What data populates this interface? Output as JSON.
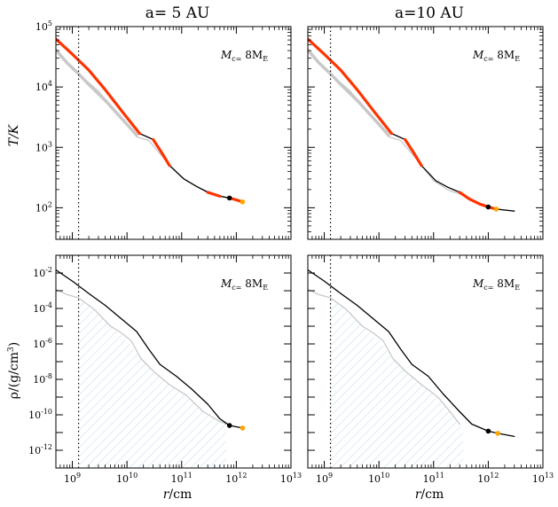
{
  "chart_data": {
    "type": "line",
    "x_axis": {
      "label": "r/cm",
      "scale": "log",
      "range": [
        500000000.0,
        10000000000000.0
      ],
      "ticks": [
        {
          "value": 1000000000.0,
          "label": "10^9"
        },
        {
          "value": 10000000000.0,
          "label": "10^10"
        },
        {
          "value": 100000000000.0,
          "label": "10^11"
        },
        {
          "value": 1000000000000.0,
          "label": "10^12"
        },
        {
          "value": 10000000000000.0,
          "label": "10^13"
        }
      ]
    },
    "core_radius_marker": 1300000000.0,
    "columns": [
      {
        "title": "a= 5 AU"
      },
      {
        "title": "a=10 AU"
      }
    ],
    "panels": [
      {
        "id": "T-5AU",
        "row": 0,
        "col": 0,
        "annotation": "Mc= 8ME",
        "ylabel": "T/K",
        "yscale": "log",
        "ylim": [
          30,
          100000.0
        ],
        "yticks": [
          {
            "value": 100.0,
            "label": "10^2"
          },
          {
            "value": 1000.0,
            "label": "10^3"
          },
          {
            "value": 10000.0,
            "label": "10^4"
          },
          {
            "value": 100000.0,
            "label": "10^5"
          }
        ],
        "series": [
          {
            "style": "gray-thin",
            "x": [
              1300000000.0,
              3000000000.0,
              6000000000.0,
              15000000000.0,
              25000000000.0,
              50000000000.0,
              100000000000.0,
              200000000000.0,
              400000000000.0,
              700000000000.0
            ],
            "y": [
              16500,
              8500,
              4000,
              1500,
              1300,
              620,
              320,
              215,
              170,
              145
            ]
          },
          {
            "style": "gray-thick",
            "x": [
              500000000.0,
              800000000.0,
              1300000000.0,
              2000000000.0,
              4000000000.0,
              8000000000.0,
              15000000000.0
            ],
            "y": [
              41000,
              25000,
              16500,
              11000,
              6000,
              3000,
              1600
            ]
          },
          {
            "style": "black-thin",
            "x": [
              500000000.0,
              1000000000.0,
              2000000000.0,
              4000000000.0,
              8000000000.0,
              17000000000.0,
              30000000000.0,
              60000000000.0,
              110000000000.0,
              180000000000.0,
              300000000000.0,
              500000000000.0,
              750000000000.0,
              1300000000000.0
            ],
            "y": [
              62000,
              35000,
              19000,
              9000,
              4000,
              1700,
              1350,
              500,
              300,
              230,
              180,
              155,
              145,
              125
            ]
          },
          {
            "style": "red-thick",
            "x": [
              500000000.0,
              1000000000.0,
              2000000000.0,
              4000000000.0,
              8000000000.0,
              17000000000.0
            ],
            "y": [
              62000,
              35000,
              19000,
              9000,
              4000,
              1700
            ]
          },
          {
            "style": "red-thick",
            "x": [
              30000000000.0,
              42000000000.0,
              60000000000.0
            ],
            "y": [
              1350,
              850,
              500
            ]
          },
          {
            "style": "red-thick",
            "x": [
              300000000000.0,
              500000000000.0
            ],
            "y": [
              180,
              155
            ]
          },
          {
            "style": "red-thick",
            "x": [
              750000000000.0,
              1000000000000.0,
              1300000000000.0
            ],
            "y": [
              145,
              135,
              125
            ]
          }
        ],
        "markers": [
          {
            "x": 750000000000.0,
            "y": 145,
            "color": "#000000"
          },
          {
            "x": 1300000000000.0,
            "y": 125,
            "color": "#ffa500"
          }
        ]
      },
      {
        "id": "T-10AU",
        "row": 0,
        "col": 1,
        "annotation": "Mc= 8ME",
        "ylabel": "",
        "yscale": "log",
        "ylim": [
          30,
          100000.0
        ],
        "yticks": [
          {
            "value": 100.0,
            "label": ""
          },
          {
            "value": 1000.0,
            "label": ""
          },
          {
            "value": 10000.0,
            "label": ""
          },
          {
            "value": 100000.0,
            "label": ""
          }
        ],
        "series": [
          {
            "style": "gray-thin",
            "x": [
              1300000000.0,
              3000000000.0,
              6000000000.0,
              15000000000.0,
              25000000000.0,
              50000000000.0,
              100000000000.0,
              200000000000.0,
              300000000000.0
            ],
            "y": [
              16500,
              8500,
              4000,
              1500,
              1300,
              620,
              280,
              190,
              170
            ]
          },
          {
            "style": "gray-thick",
            "x": [
              500000000.0,
              800000000.0,
              1300000000.0,
              2000000000.0,
              4000000000.0,
              8000000000.0,
              15000000000.0
            ],
            "y": [
              41000,
              25000,
              16500,
              11000,
              6000,
              3000,
              1600
            ]
          },
          {
            "style": "black-thin",
            "x": [
              500000000.0,
              1000000000.0,
              2000000000.0,
              4000000000.0,
              8000000000.0,
              17000000000.0,
              30000000000.0,
              60000000000.0,
              110000000000.0,
              180000000000.0,
              300000000000.0,
              450000000000.0,
              700000000000.0,
              1000000000000.0,
              1400000000000.0,
              3000000000000.0
            ],
            "y": [
              62000,
              35000,
              19000,
              9000,
              4000,
              1700,
              1350,
              500,
              280,
              220,
              180,
              140,
              115,
              103,
              95,
              88
            ]
          },
          {
            "style": "red-thick",
            "x": [
              500000000.0,
              1000000000.0,
              2000000000.0,
              4000000000.0,
              8000000000.0,
              17000000000.0
            ],
            "y": [
              62000,
              35000,
              19000,
              9000,
              4000,
              1700
            ]
          },
          {
            "style": "red-thick",
            "x": [
              30000000000.0,
              42000000000.0,
              60000000000.0
            ],
            "y": [
              1350,
              850,
              500
            ]
          },
          {
            "style": "red-thick",
            "x": [
              300000000000.0,
              450000000000.0,
              700000000000.0,
              1000000000000.0,
              1400000000000.0
            ],
            "y": [
              180,
              140,
              115,
              103,
              95
            ]
          }
        ],
        "markers": [
          {
            "x": 1000000000000.0,
            "y": 103,
            "color": "#000000"
          },
          {
            "x": 1400000000000.0,
            "y": 95,
            "color": "#ffa500"
          }
        ]
      },
      {
        "id": "rho-5AU",
        "row": 1,
        "col": 0,
        "annotation": "Mc= 8ME",
        "ylabel": "ρ/(g/cm^3)",
        "yscale": "log",
        "ylim": [
          1e-13,
          0.1
        ],
        "yticks": [
          {
            "value": 1e-12,
            "label": "10^-12"
          },
          {
            "value": 1e-10,
            "label": "10^-10"
          },
          {
            "value": 1e-08,
            "label": "10^-8"
          },
          {
            "value": 1e-06,
            "label": "10^-6"
          },
          {
            "value": 0.0001,
            "label": "10^-4"
          },
          {
            "value": 0.01,
            "label": "10^-2"
          }
        ],
        "hatch": {
          "x": [
            1300000000.0,
            2500000000.0,
            5000000000.0,
            10000000000.0,
            18000000000.0,
            30000000000.0,
            60000000000.0,
            120000000000.0,
            250000000000.0,
            450000000000.0,
            650000000000.0
          ],
          "y": [
            0.0004,
            9e-05,
            1e-05,
            1.5e-06,
            1.5e-07,
            3e-08,
            5e-09,
            1.3e-09,
            1.5e-10,
            5e-11,
            3e-11
          ]
        },
        "series": [
          {
            "style": "gray-thin",
            "x": [
              500000000.0,
              800000000.0,
              1300000000.0,
              2500000000.0,
              5000000000.0,
              8000000000.0,
              12000000000.0,
              18000000000.0,
              30000000000.0,
              60000000000.0,
              120000000000.0,
              250000000000.0,
              450000000000.0,
              650000000000.0
            ],
            "y": [
              0.0012,
              0.0006,
              0.0004,
              9e-05,
              1e-05,
              4e-06,
              1.5e-06,
              1.5e-07,
              3e-08,
              5e-09,
              1.3e-09,
              1.5e-10,
              5e-11,
              3e-11
            ]
          },
          {
            "style": "black-thin",
            "x": [
              500000000.0,
              1000000000.0,
              2000000000.0,
              4000000000.0,
              8000000000.0,
              15000000000.0,
              25000000000.0,
              40000000000.0,
              80000000000.0,
              150000000000.0,
              300000000000.0,
              500000000000.0,
              750000000000.0,
              1300000000000.0
            ],
            "y": [
              0.015,
              0.0035,
              0.0007,
              0.00015,
              2.5e-05,
              5e-06,
              5e-07,
              7e-08,
              1.5e-08,
              3e-09,
              4e-10,
              6e-11,
              2.5e-11,
              1.8e-11
            ]
          }
        ],
        "markers": [
          {
            "x": 750000000000.0,
            "y": 2.5e-11,
            "color": "#000000"
          },
          {
            "x": 1300000000000.0,
            "y": 1.8e-11,
            "color": "#ffa500"
          }
        ]
      },
      {
        "id": "rho-10AU",
        "row": 1,
        "col": 1,
        "annotation": "Mc= 8ME",
        "ylabel": "",
        "yscale": "log",
        "ylim": [
          1e-13,
          0.1
        ],
        "yticks": [
          {
            "value": 1e-12,
            "label": ""
          },
          {
            "value": 1e-10,
            "label": ""
          },
          {
            "value": 1e-08,
            "label": ""
          },
          {
            "value": 1e-06,
            "label": ""
          },
          {
            "value": 0.0001,
            "label": ""
          },
          {
            "value": 0.01,
            "label": ""
          }
        ],
        "hatch": {
          "x": [
            1300000000.0,
            2500000000.0,
            5000000000.0,
            10000000000.0,
            18000000000.0,
            30000000000.0,
            60000000000.0,
            120000000000.0,
            200000000000.0,
            300000000000.0,
            350000000000.0
          ],
          "y": [
            0.0004,
            9e-05,
            1e-05,
            1.5e-06,
            1.5e-07,
            3e-08,
            5e-09,
            1e-09,
            1.5e-10,
            3e-11,
            1.5e-11
          ]
        },
        "series": [
          {
            "style": "gray-thin",
            "x": [
              500000000.0,
              800000000.0,
              1300000000.0,
              2500000000.0,
              5000000000.0,
              8000000000.0,
              12000000000.0,
              18000000000.0,
              30000000000.0,
              60000000000.0,
              120000000000.0,
              200000000000.0,
              300000000000.0
            ],
            "y": [
              0.0012,
              0.0006,
              0.0004,
              9e-05,
              1e-05,
              4e-06,
              1.5e-06,
              1.5e-07,
              3e-08,
              5e-09,
              1e-09,
              1.5e-10,
              3e-11
            ]
          },
          {
            "style": "black-thin",
            "x": [
              500000000.0,
              1000000000.0,
              2000000000.0,
              4000000000.0,
              8000000000.0,
              15000000000.0,
              25000000000.0,
              40000000000.0,
              80000000000.0,
              150000000000.0,
              300000000000.0,
              500000000000.0,
              1000000000000.0,
              1500000000000.0,
              3000000000000.0
            ],
            "y": [
              0.015,
              0.0035,
              0.0007,
              0.00015,
              2.5e-05,
              5e-06,
              5e-07,
              7e-08,
              1.5e-08,
              1.5e-09,
              1.5e-10,
              3e-11,
              1.2e-11,
              9e-12,
              6e-12
            ]
          }
        ],
        "markers": [
          {
            "x": 1000000000000.0,
            "y": 1.2e-11,
            "color": "#000000"
          },
          {
            "x": 1500000000000.0,
            "y": 9e-12,
            "color": "#ffa500"
          }
        ]
      }
    ]
  },
  "colors": {
    "red": "#ff3300",
    "gray": "#c8c8c8",
    "black": "#000000",
    "hatch": "#b9dcef",
    "orange": "#ffa500"
  }
}
